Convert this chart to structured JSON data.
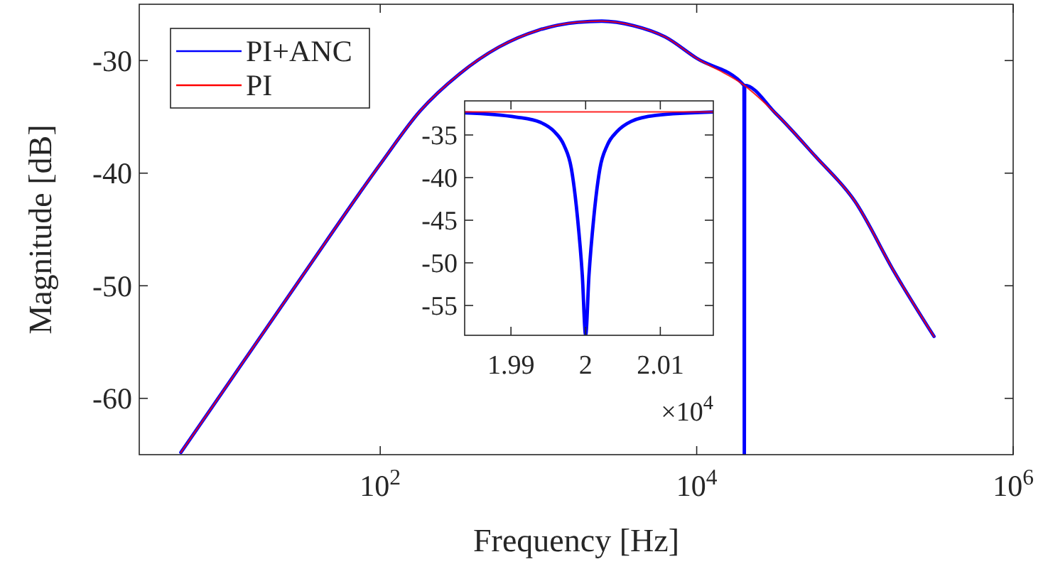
{
  "chart_data": [
    {
      "type": "line",
      "xlabel": "Frequency [Hz]",
      "ylabel": "Magnitude [dB]",
      "log": "x",
      "xlim": [
        3,
        1000000
      ],
      "ylim": [
        -65,
        -25
      ],
      "xticks": [
        {
          "value": 100,
          "label": "10$^{2}$"
        },
        {
          "value": 10000,
          "label": "10$^{4}$"
        },
        {
          "value": 1000000,
          "label": "10$^{6}$"
        }
      ],
      "yticks": [
        -60,
        -50,
        -40,
        -30
      ],
      "grid": false,
      "legend": "top left",
      "series": [
        {
          "name": "PI+ANC",
          "color": "#0000ff",
          "x": [
            5.5,
            10,
            31.6,
            100,
            178,
            316,
            562,
            1000,
            1778,
            2512,
            3981,
            6310,
            10000,
            19900,
            20000,
            20100,
            31600,
            56200,
            100000,
            177800,
            316000
          ],
          "values": [
            -64.8,
            -59.5,
            -49.3,
            -39.2,
            -34.5,
            -31.2,
            -28.8,
            -27.3,
            -26.6,
            -26.5,
            -26.9,
            -27.9,
            -29.8,
            -32.2,
            -65,
            -32.2,
            -34.7,
            -38.5,
            -42.5,
            -48.8,
            -54.5
          ]
        },
        {
          "name": "PI",
          "color": "#ff0000",
          "x": [
            5.5,
            10,
            31.6,
            100,
            178,
            316,
            562,
            1000,
            1778,
            2512,
            3981,
            6310,
            10000,
            20000,
            31600,
            56200,
            100000,
            177800,
            316000
          ],
          "values": [
            -64.8,
            -59.5,
            -49.3,
            -39.2,
            -34.5,
            -31.2,
            -28.8,
            -27.3,
            -26.6,
            -26.5,
            -26.9,
            -27.9,
            -29.8,
            -32.2,
            -34.7,
            -38.5,
            -42.5,
            -48.8,
            -54.5
          ]
        }
      ]
    },
    {
      "type": "line",
      "xlim": [
        1.9838,
        2.0171
      ],
      "ylim": [
        -58.5,
        -31
      ],
      "xticks": [
        1.99,
        2,
        2.01
      ],
      "yticks": [
        -55,
        -50,
        -45,
        -40,
        -35
      ],
      "grid": false,
      "annotations": [
        "×10$^{4}$"
      ],
      "series": [
        {
          "color": "#0000ff",
          "x": [
            1.9838,
            1.9907,
            1.9939,
            1.9958,
            1.9971,
            1.9981,
            1.9989,
            1.99955,
            2.0,
            2.00045,
            2.0011,
            2.0019,
            2.0029,
            2.0042,
            2.0061,
            2.0094,
            2.0171
          ],
          "values": [
            -32.4,
            -32.9,
            -33.5,
            -34.6,
            -36.2,
            -39.0,
            -44.6,
            -51.4,
            -58.5,
            -51.4,
            -44.6,
            -39.0,
            -36.2,
            -34.6,
            -33.4,
            -32.7,
            -32.3
          ]
        },
        {
          "color": "#ff0000",
          "x": [
            1.9838,
            2.0171
          ],
          "values": [
            -32.3,
            -32.3
          ]
        }
      ]
    }
  ]
}
